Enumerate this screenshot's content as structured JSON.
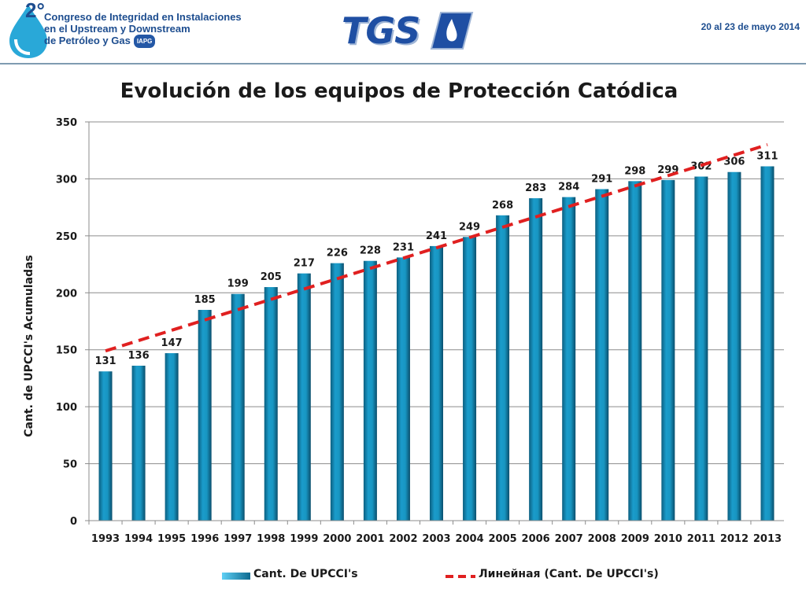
{
  "header": {
    "conference_number": "2°",
    "conference_lines": [
      "Congreso de Integridad en Instalaciones",
      "en el Upstream y Downstream",
      "de Petróleo y Gas"
    ],
    "org_badge": "IAPG",
    "tgs_logo": "TGS",
    "dates": "20 al 23 de mayo 2014",
    "colors": {
      "brand_blue": "#1d4d8f",
      "logo_cyan": "#29a8d8"
    }
  },
  "chart_data": {
    "type": "bar",
    "title": "Evolución de los equipos de Protección Catódica",
    "ylabel": "Cant. de UPCCI's Acumuladas",
    "xlabel": "",
    "ylim": [
      0,
      350
    ],
    "yticks": [
      0,
      50,
      100,
      150,
      200,
      250,
      300,
      350
    ],
    "grid": true,
    "legend_position": "bottom",
    "categories": [
      "1993",
      "1994",
      "1995",
      "1996",
      "1997",
      "1998",
      "1999",
      "2000",
      "2001",
      "2002",
      "2003",
      "2004",
      "2005",
      "2006",
      "2007",
      "2008",
      "2009",
      "2010",
      "2011",
      "2012",
      "2013"
    ],
    "series": [
      {
        "name": "Cant. De UPCCI's",
        "color": "#1896c2",
        "values": [
          131,
          136,
          147,
          185,
          199,
          205,
          217,
          226,
          228,
          231,
          241,
          249,
          268,
          283,
          284,
          291,
          298,
          299,
          302,
          306,
          311
        ]
      }
    ],
    "trendline": {
      "name": "Линейная (Cant. De UPCCI's)",
      "color": "#e02020",
      "style": "dashed",
      "start_value": 149,
      "end_value": 330
    }
  }
}
